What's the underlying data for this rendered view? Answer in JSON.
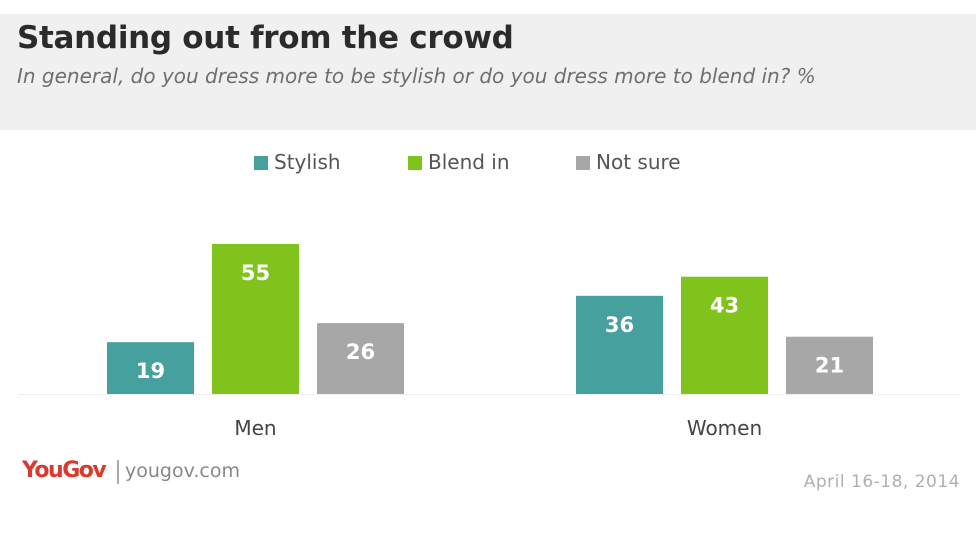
{
  "header": {
    "title": "Standing out from the crowd",
    "subtitle": "In general, do you dress more to be stylish or do you dress more to blend in? %"
  },
  "chart_data": {
    "type": "bar",
    "categories": [
      "Men",
      "Women"
    ],
    "series": [
      {
        "name": "Stylish",
        "values": [
          19,
          36
        ],
        "color": "#45a09e"
      },
      {
        "name": "Blend in",
        "values": [
          55,
          43
        ],
        "color": "#7fc31c"
      },
      {
        "name": "Not sure",
        "values": [
          26,
          21
        ],
        "color": "#a7a7a7"
      }
    ],
    "legend_position": "top-center",
    "grid": false
  },
  "footer": {
    "brand_logo": "YouGov",
    "brand_url": "yougov.com",
    "date": "April 16-18, 2014"
  }
}
